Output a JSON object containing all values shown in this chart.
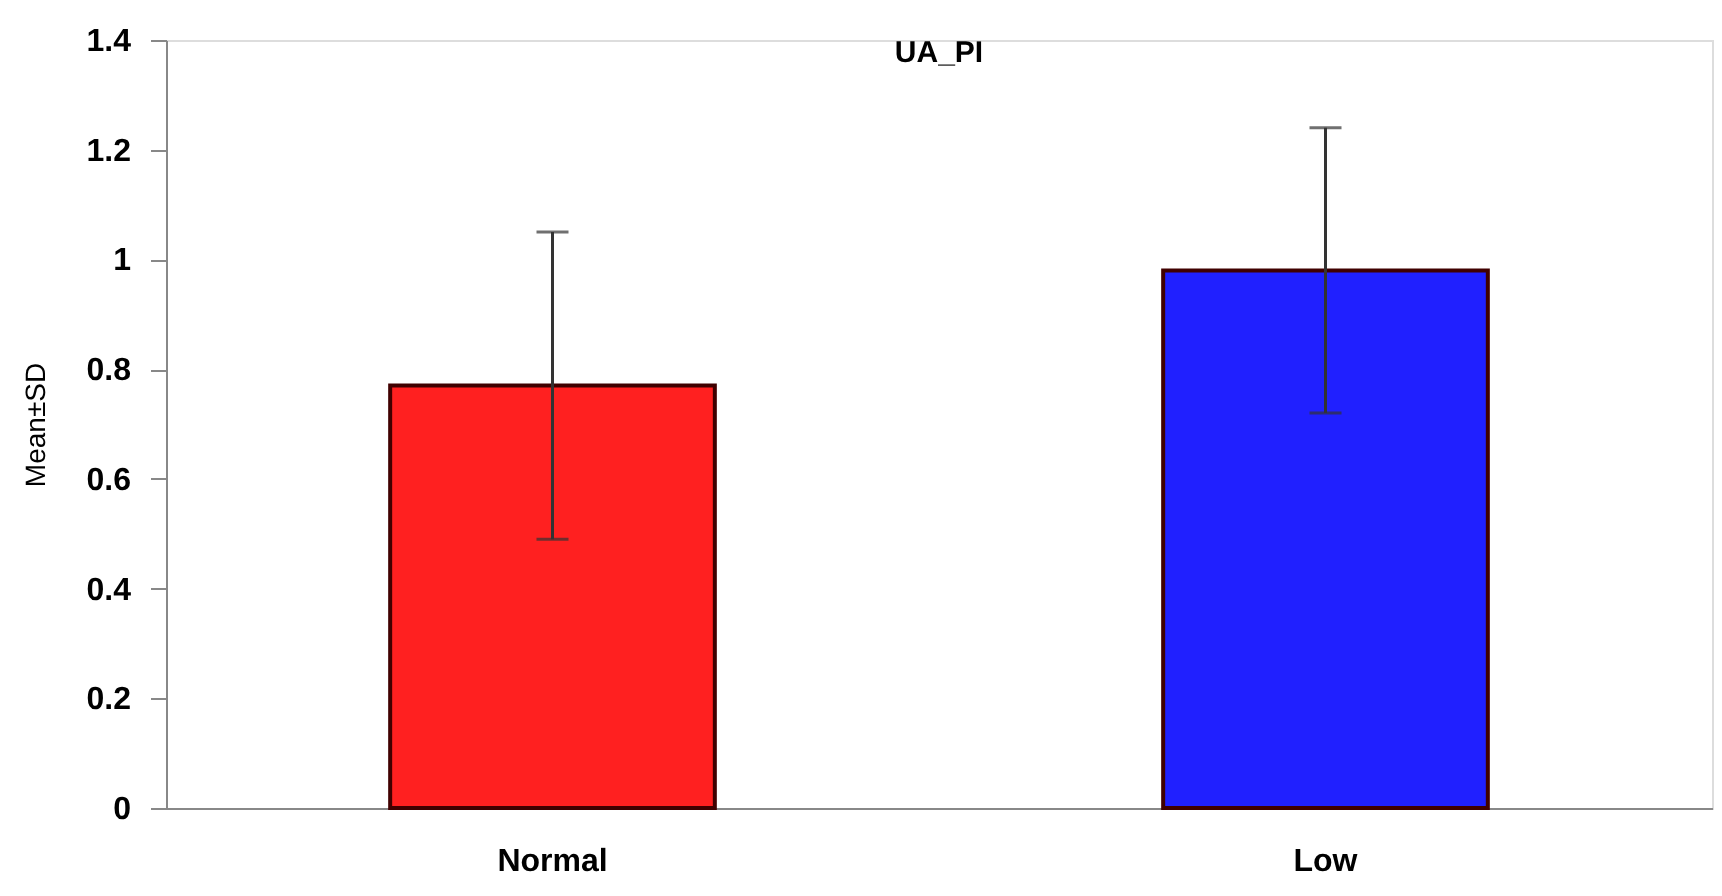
{
  "chart_data": {
    "type": "bar",
    "title": "UA_PI",
    "ylabel": "Mean±SD",
    "categories": [
      "Normal",
      "Low"
    ],
    "values": [
      0.77,
      0.98
    ],
    "colors": [
      "#ff2020",
      "#2020ff"
    ],
    "errors": [
      0.28,
      0.26
    ],
    "ylim": [
      0,
      1.4
    ],
    "yticks": [
      0,
      0.2,
      0.4,
      0.6,
      0.8,
      1,
      1.2,
      1.4
    ],
    "grid": false
  }
}
